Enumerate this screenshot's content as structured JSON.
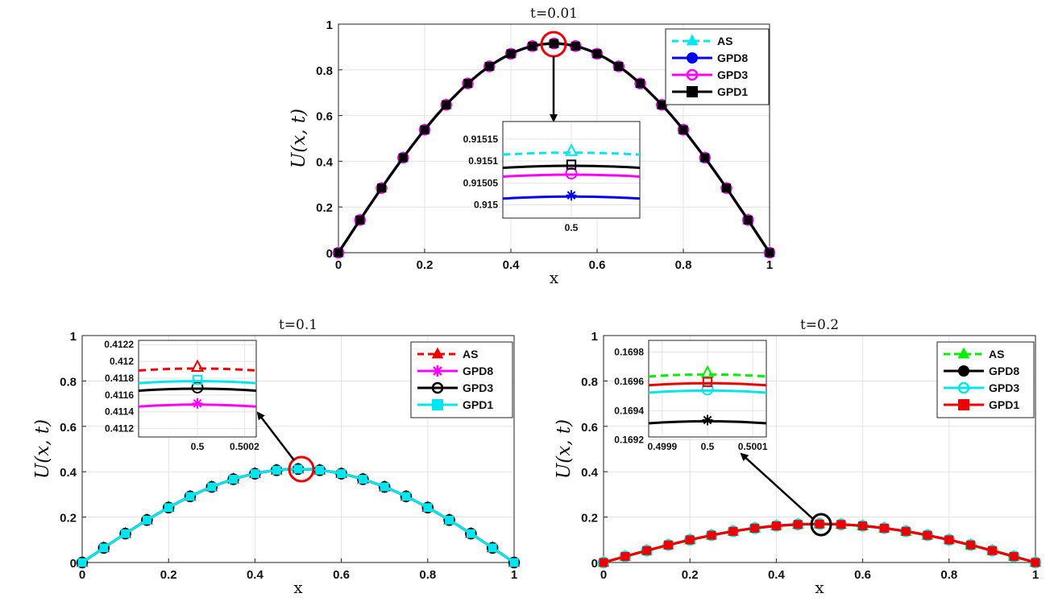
{
  "chart_data": [
    {
      "type": "line",
      "title": "t=0.01",
      "xlabel": "x",
      "ylabel": "U(x, t)",
      "xlim": [
        0,
        1
      ],
      "ylim": [
        0,
        1
      ],
      "xticks": [
        "0",
        "0.2",
        "0.4",
        "0.6",
        "0.8",
        "1"
      ],
      "yticks": [
        "0",
        "0.2",
        "0.4",
        "0.6",
        "0.8",
        "1"
      ],
      "grid": true,
      "amplitude": 0.9151,
      "legend_position": "top-right",
      "series": [
        {
          "name": "AS",
          "color": "#00e5ee",
          "style": "dashed",
          "marker": "triangle"
        },
        {
          "name": "GPD8",
          "color": "#0000ee",
          "style": "solid",
          "marker": "dot"
        },
        {
          "name": "GPD3",
          "color": "#ff00ff",
          "style": "solid",
          "marker": "circle"
        },
        {
          "name": "GPD1",
          "color": "#000000",
          "style": "solid",
          "marker": "square"
        }
      ],
      "inset": {
        "position": "center",
        "xlim": [
          0.4996,
          0.5004
        ],
        "ylim": [
          0.91497,
          0.91519
        ],
        "xticks": [
          "0.5"
        ],
        "yticks": [
          "0.915",
          "0.91505",
          "0.9151",
          "0.91515"
        ],
        "values": {
          "AS": 0.91512,
          "GPD8": 0.91502,
          "GPD3": 0.91507,
          "GPD1": 0.91509
        },
        "inner_markers": {
          "AS": "triangle",
          "GPD8": "asterisk",
          "GPD3": "circle",
          "GPD1": "square"
        }
      }
    },
    {
      "type": "line",
      "title": "t=0.1",
      "xlabel": "x",
      "ylabel": "U(x, t)",
      "xlim": [
        0,
        1
      ],
      "ylim": [
        0,
        1
      ],
      "xticks": [
        "0",
        "0.2",
        "0.4",
        "0.6",
        "0.8",
        "1"
      ],
      "yticks": [
        "0",
        "0.2",
        "0.4",
        "0.6",
        "0.8",
        "1"
      ],
      "grid": true,
      "amplitude": 0.4117,
      "legend_position": "top-right",
      "series": [
        {
          "name": "AS",
          "color": "#ee0000",
          "style": "dashed",
          "marker": "triangle"
        },
        {
          "name": "GPD8",
          "color": "#ff00ff",
          "style": "solid",
          "marker": "asterisk"
        },
        {
          "name": "GPD3",
          "color": "#000000",
          "style": "solid",
          "marker": "circle"
        },
        {
          "name": "GPD1",
          "color": "#00e5ee",
          "style": "solid",
          "marker": "square"
        }
      ],
      "inset": {
        "position": "top-left",
        "xlim": [
          0.49975,
          0.50025
        ],
        "ylim": [
          0.4111,
          0.41225
        ],
        "xticks": [
          "0.5",
          "0.5002"
        ],
        "yticks": [
          "0.4112",
          "0.4114",
          "0.4116",
          "0.4118",
          "0.412",
          "0.4122"
        ],
        "values": {
          "AS": 0.41192,
          "GPD8": 0.41149,
          "GPD3": 0.41168,
          "GPD1": 0.41177
        },
        "inner_markers": {
          "AS": "triangle",
          "GPD8": "asterisk",
          "GPD3": "circle",
          "GPD1": "square"
        }
      }
    },
    {
      "type": "line",
      "title": "t=0.2",
      "xlabel": "x",
      "ylabel": "U(x, t)",
      "xlim": [
        0,
        1
      ],
      "ylim": [
        0,
        1
      ],
      "xticks": [
        "0",
        "0.2",
        "0.4",
        "0.6",
        "0.8",
        "1"
      ],
      "yticks": [
        "0",
        "0.2",
        "0.4",
        "0.6",
        "0.8",
        "1"
      ],
      "grid": true,
      "amplitude": 0.1696,
      "legend_position": "top-right",
      "series": [
        {
          "name": "AS",
          "color": "#00ee00",
          "style": "dashed",
          "marker": "triangle"
        },
        {
          "name": "GPD8",
          "color": "#000000",
          "style": "solid",
          "marker": "dot"
        },
        {
          "name": "GPD3",
          "color": "#00e5ee",
          "style": "solid",
          "marker": "circle"
        },
        {
          "name": "GPD1",
          "color": "#ee0000",
          "style": "solid",
          "marker": "square"
        }
      ],
      "inset": {
        "position": "top-left",
        "xlim": [
          0.49987,
          0.50013
        ],
        "ylim": [
          0.16922,
          0.16988
        ],
        "xticks": [
          "0.4999",
          "0.5",
          "0.5001"
        ],
        "yticks": [
          "0.1692",
          "0.1694",
          "0.1696",
          "0.1698"
        ],
        "values": {
          "AS": 0.16965,
          "GPD8": 0.16933,
          "GPD3": 0.16954,
          "GPD1": 0.16959
        },
        "inner_markers": {
          "AS": "triangle",
          "GPD8": "asterisk",
          "GPD3": "circle",
          "GPD1": "square"
        }
      }
    }
  ]
}
